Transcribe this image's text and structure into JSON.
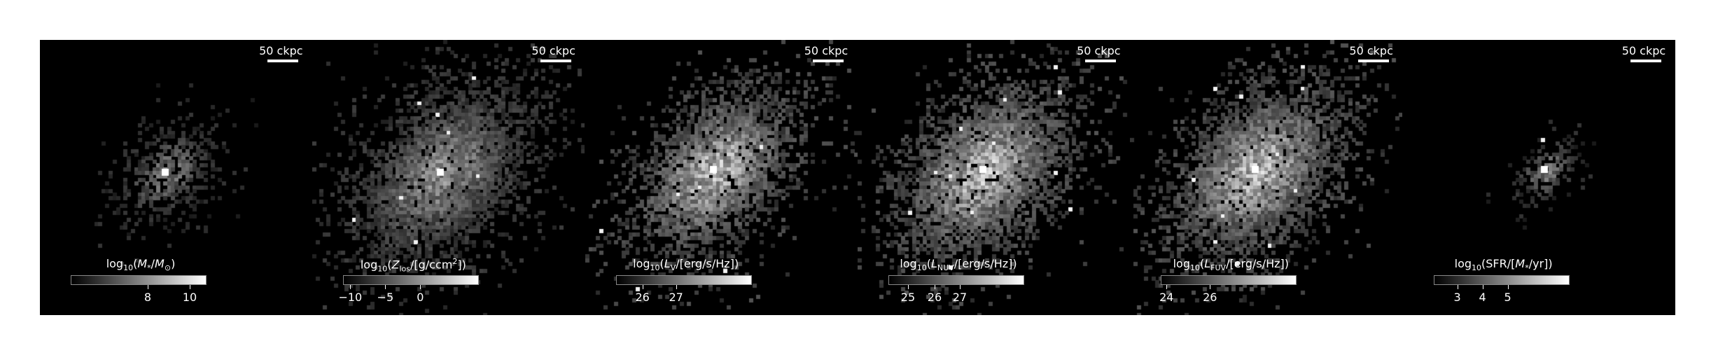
{
  "scale_label": "50 ckpc",
  "panels": [
    {
      "id": "stellar-mass",
      "colorbar": {
        "prefix": "log",
        "sub": "10",
        "body_html": "(<i>M</i><sub>*</sub>/<i>M</i><sub>⊙</sub>)",
        "ticks": [
          "8",
          "10"
        ]
      },
      "center": [
        0.46,
        0.48
      ],
      "spread": 0.09,
      "brightness": 0.55,
      "noise_density": 0.35
    },
    {
      "id": "metallicity",
      "colorbar": {
        "prefix": "log",
        "sub": "10",
        "body_html": "(<i>Z</i><sub>los</sub>/[g/ccm<sup>2</sup>])",
        "ticks": [
          "−10",
          "−5",
          "0"
        ]
      },
      "center": [
        0.47,
        0.48
      ],
      "spread": 0.16,
      "brightness": 0.65,
      "noise_density": 0.75
    },
    {
      "id": "luminosity-v",
      "colorbar": {
        "prefix": "log",
        "sub": "10",
        "body_html": "(<i>L</i><sub>V</sub>/[erg/s/Hz])",
        "ticks": [
          "26",
          "27"
        ]
      },
      "center": [
        0.47,
        0.47
      ],
      "spread": 0.15,
      "brightness": 0.85,
      "noise_density": 0.7
    },
    {
      "id": "luminosity-nuv",
      "colorbar": {
        "prefix": "log",
        "sub": "10",
        "body_html": "(<i>L</i><sub>NUV</sub>/[erg/s/Hz])",
        "ticks": [
          "25",
          "26",
          "27"
        ]
      },
      "center": [
        0.46,
        0.47
      ],
      "spread": 0.16,
      "brightness": 0.85,
      "noise_density": 0.75
    },
    {
      "id": "luminosity-fuv",
      "colorbar": {
        "prefix": "log",
        "sub": "10",
        "body_html": "(<i>L</i><sub>FUV</sub>/[erg/s/Hz])",
        "ticks": [
          "24",
          "26"
        ]
      },
      "center": [
        0.46,
        0.47
      ],
      "spread": 0.16,
      "brightness": 0.85,
      "noise_density": 0.75
    },
    {
      "id": "star-formation-rate",
      "colorbar": {
        "prefix": "log",
        "sub": "10",
        "body_html": "(SFR/[<i>M</i><sub>*</sub>/yr])",
        "ticks": [
          "3",
          "4",
          "5"
        ]
      },
      "center": [
        0.52,
        0.47
      ],
      "spread": 0.06,
      "brightness": 0.55,
      "noise_density": 0.18
    }
  ]
}
